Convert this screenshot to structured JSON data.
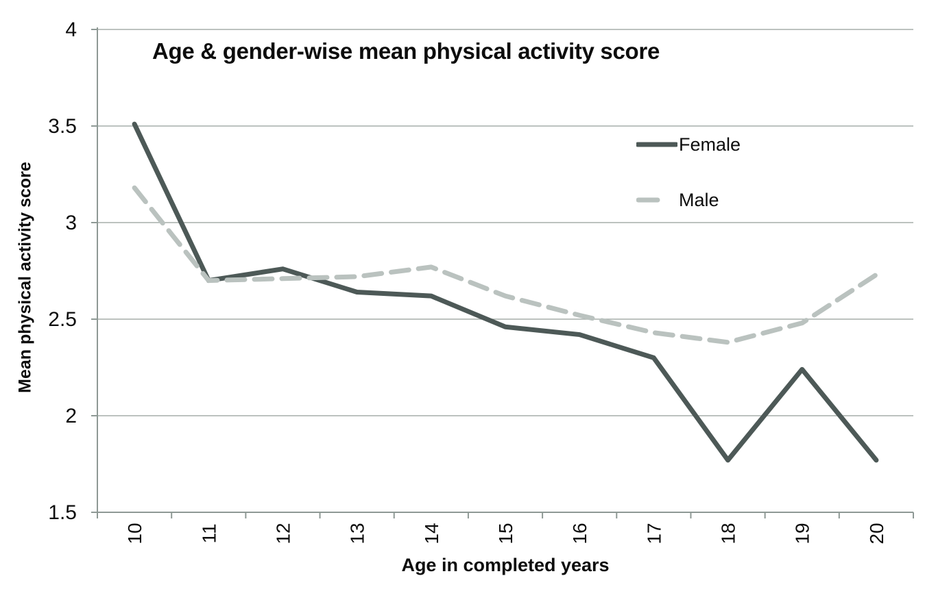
{
  "chart_data": {
    "type": "line",
    "title": "Age & gender-wise mean physical activity score",
    "xlabel": "Age in completed years",
    "ylabel": "Mean physical activity score",
    "x": [
      10,
      11,
      12,
      13,
      14,
      15,
      16,
      17,
      18,
      19,
      20
    ],
    "series": [
      {
        "name": "Female",
        "line_style": "solid",
        "color": "#4d5957",
        "values": [
          3.51,
          2.7,
          2.76,
          2.64,
          2.62,
          2.46,
          2.42,
          2.3,
          1.77,
          2.24,
          1.77
        ]
      },
      {
        "name": "Male",
        "line_style": "dashed",
        "color": "#bac2bf",
        "values": [
          3.18,
          2.7,
          2.71,
          2.72,
          2.77,
          2.62,
          2.52,
          2.43,
          2.38,
          2.48,
          2.73
        ]
      }
    ],
    "ylim": [
      1.5,
      4
    ],
    "yticks": [
      {
        "value": 1.5,
        "label": "1.5"
      },
      {
        "value": 2,
        "label": "2"
      },
      {
        "value": 2.5,
        "label": "2.5"
      },
      {
        "value": 3,
        "label": "3"
      },
      {
        "value": 3.5,
        "label": "3.5"
      },
      {
        "value": 4,
        "label": "4"
      }
    ],
    "grid": true,
    "legend_position": "upper-right",
    "x_tick_label_rotation": -90
  },
  "colors": {
    "female_line": "#4d5957",
    "male_line": "#bac2bf",
    "gridline": "#a6aeaa",
    "axis": "#8e9995",
    "text": "#0d0d0d",
    "background": "#ffffff"
  }
}
